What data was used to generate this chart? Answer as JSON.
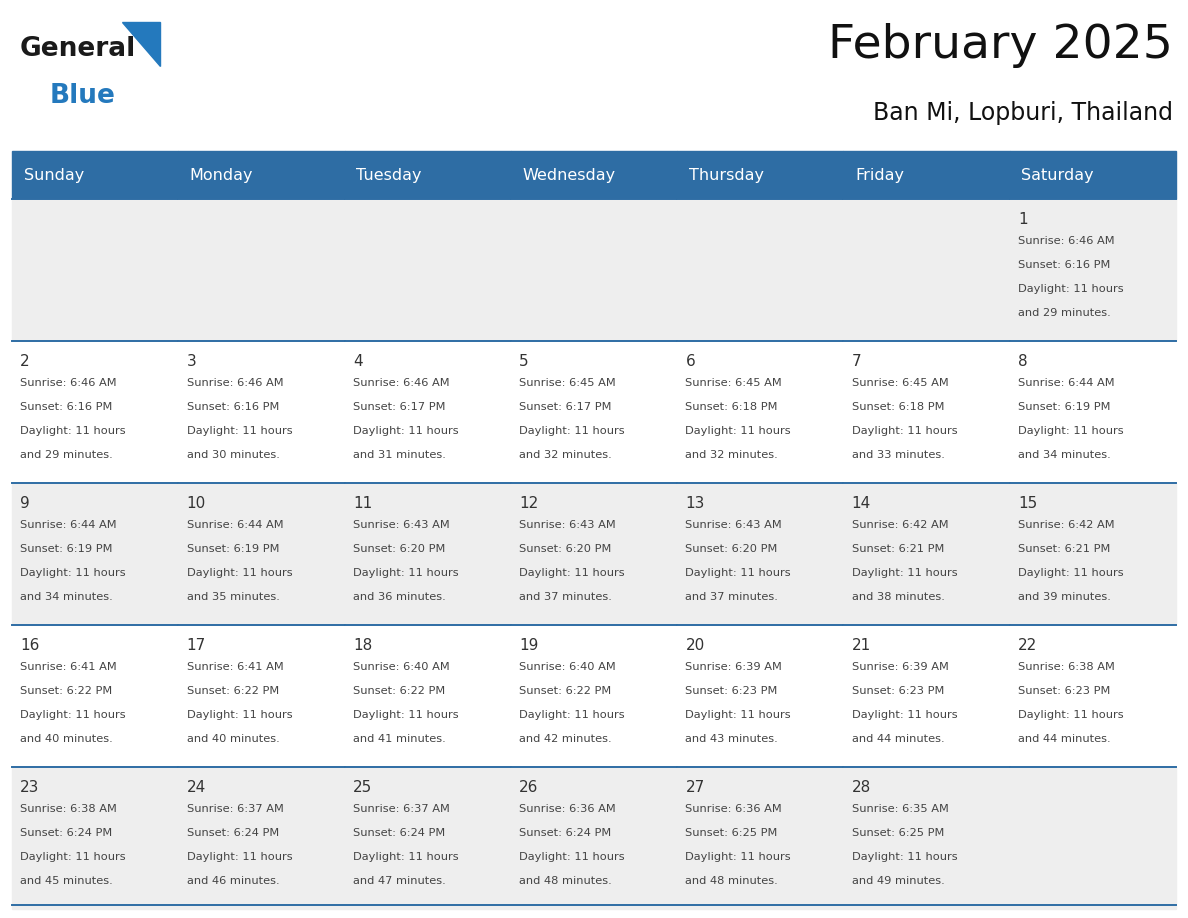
{
  "title": "February 2025",
  "subtitle": "Ban Mi, Lopburi, Thailand",
  "header_color": "#2E6DA4",
  "header_text_color": "#FFFFFF",
  "days_of_week": [
    "Sunday",
    "Monday",
    "Tuesday",
    "Wednesday",
    "Thursday",
    "Friday",
    "Saturday"
  ],
  "background_color": "#FFFFFF",
  "cell_bg_even": "#EEEEEE",
  "cell_bg_odd": "#FFFFFF",
  "cell_border_color": "#2E6DA4",
  "text_color": "#444444",
  "day_num_color": "#333333",
  "calendar_data": [
    [
      null,
      null,
      null,
      null,
      null,
      null,
      {
        "day": 1,
        "sunrise": "6:46 AM",
        "sunset": "6:16 PM",
        "daylight_h": "11 hours",
        "daylight_m": "and 29 minutes."
      }
    ],
    [
      {
        "day": 2,
        "sunrise": "6:46 AM",
        "sunset": "6:16 PM",
        "daylight_h": "11 hours",
        "daylight_m": "and 29 minutes."
      },
      {
        "day": 3,
        "sunrise": "6:46 AM",
        "sunset": "6:16 PM",
        "daylight_h": "11 hours",
        "daylight_m": "and 30 minutes."
      },
      {
        "day": 4,
        "sunrise": "6:46 AM",
        "sunset": "6:17 PM",
        "daylight_h": "11 hours",
        "daylight_m": "and 31 minutes."
      },
      {
        "day": 5,
        "sunrise": "6:45 AM",
        "sunset": "6:17 PM",
        "daylight_h": "11 hours",
        "daylight_m": "and 32 minutes."
      },
      {
        "day": 6,
        "sunrise": "6:45 AM",
        "sunset": "6:18 PM",
        "daylight_h": "11 hours",
        "daylight_m": "and 32 minutes."
      },
      {
        "day": 7,
        "sunrise": "6:45 AM",
        "sunset": "6:18 PM",
        "daylight_h": "11 hours",
        "daylight_m": "and 33 minutes."
      },
      {
        "day": 8,
        "sunrise": "6:44 AM",
        "sunset": "6:19 PM",
        "daylight_h": "11 hours",
        "daylight_m": "and 34 minutes."
      }
    ],
    [
      {
        "day": 9,
        "sunrise": "6:44 AM",
        "sunset": "6:19 PM",
        "daylight_h": "11 hours",
        "daylight_m": "and 34 minutes."
      },
      {
        "day": 10,
        "sunrise": "6:44 AM",
        "sunset": "6:19 PM",
        "daylight_h": "11 hours",
        "daylight_m": "and 35 minutes."
      },
      {
        "day": 11,
        "sunrise": "6:43 AM",
        "sunset": "6:20 PM",
        "daylight_h": "11 hours",
        "daylight_m": "and 36 minutes."
      },
      {
        "day": 12,
        "sunrise": "6:43 AM",
        "sunset": "6:20 PM",
        "daylight_h": "11 hours",
        "daylight_m": "and 37 minutes."
      },
      {
        "day": 13,
        "sunrise": "6:43 AM",
        "sunset": "6:20 PM",
        "daylight_h": "11 hours",
        "daylight_m": "and 37 minutes."
      },
      {
        "day": 14,
        "sunrise": "6:42 AM",
        "sunset": "6:21 PM",
        "daylight_h": "11 hours",
        "daylight_m": "and 38 minutes."
      },
      {
        "day": 15,
        "sunrise": "6:42 AM",
        "sunset": "6:21 PM",
        "daylight_h": "11 hours",
        "daylight_m": "and 39 minutes."
      }
    ],
    [
      {
        "day": 16,
        "sunrise": "6:41 AM",
        "sunset": "6:22 PM",
        "daylight_h": "11 hours",
        "daylight_m": "and 40 minutes."
      },
      {
        "day": 17,
        "sunrise": "6:41 AM",
        "sunset": "6:22 PM",
        "daylight_h": "11 hours",
        "daylight_m": "and 40 minutes."
      },
      {
        "day": 18,
        "sunrise": "6:40 AM",
        "sunset": "6:22 PM",
        "daylight_h": "11 hours",
        "daylight_m": "and 41 minutes."
      },
      {
        "day": 19,
        "sunrise": "6:40 AM",
        "sunset": "6:22 PM",
        "daylight_h": "11 hours",
        "daylight_m": "and 42 minutes."
      },
      {
        "day": 20,
        "sunrise": "6:39 AM",
        "sunset": "6:23 PM",
        "daylight_h": "11 hours",
        "daylight_m": "and 43 minutes."
      },
      {
        "day": 21,
        "sunrise": "6:39 AM",
        "sunset": "6:23 PM",
        "daylight_h": "11 hours",
        "daylight_m": "and 44 minutes."
      },
      {
        "day": 22,
        "sunrise": "6:38 AM",
        "sunset": "6:23 PM",
        "daylight_h": "11 hours",
        "daylight_m": "and 44 minutes."
      }
    ],
    [
      {
        "day": 23,
        "sunrise": "6:38 AM",
        "sunset": "6:24 PM",
        "daylight_h": "11 hours",
        "daylight_m": "and 45 minutes."
      },
      {
        "day": 24,
        "sunrise": "6:37 AM",
        "sunset": "6:24 PM",
        "daylight_h": "11 hours",
        "daylight_m": "and 46 minutes."
      },
      {
        "day": 25,
        "sunrise": "6:37 AM",
        "sunset": "6:24 PM",
        "daylight_h": "11 hours",
        "daylight_m": "and 47 minutes."
      },
      {
        "day": 26,
        "sunrise": "6:36 AM",
        "sunset": "6:24 PM",
        "daylight_h": "11 hours",
        "daylight_m": "and 48 minutes."
      },
      {
        "day": 27,
        "sunrise": "6:36 AM",
        "sunset": "6:25 PM",
        "daylight_h": "11 hours",
        "daylight_m": "and 48 minutes."
      },
      {
        "day": 28,
        "sunrise": "6:35 AM",
        "sunset": "6:25 PM",
        "daylight_h": "11 hours",
        "daylight_m": "and 49 minutes."
      },
      null
    ]
  ],
  "logo_text1": "General",
  "logo_text2": "Blue",
  "logo_color1": "#1a1a1a",
  "logo_color2": "#2479BD",
  "logo_triangle_color": "#2479BD"
}
